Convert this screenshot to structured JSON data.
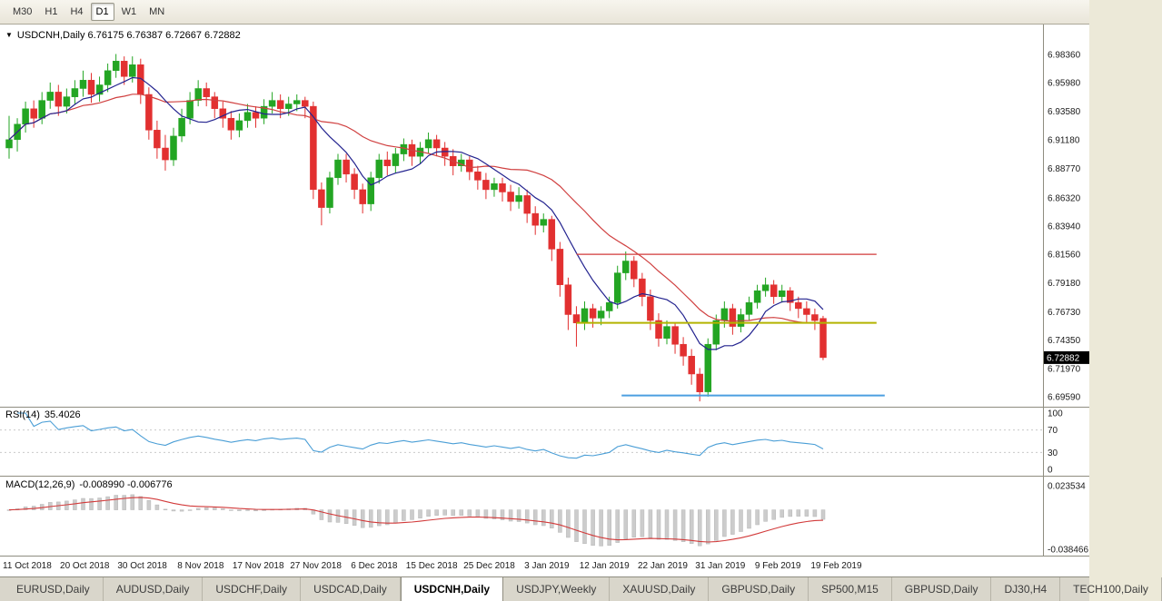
{
  "toolbar": {
    "timeframes": [
      {
        "label": "M30",
        "active": false
      },
      {
        "label": "H1",
        "active": false
      },
      {
        "label": "H4",
        "active": false
      },
      {
        "label": "D1",
        "active": true
      },
      {
        "label": "W1",
        "active": false
      },
      {
        "label": "MN",
        "active": false
      }
    ]
  },
  "chart_data": {
    "type": "candlestick",
    "symbol": "USDCNH,Daily",
    "title_text": "USDCNH,Daily  6.76175 6.76387 6.72667 6.72882",
    "current_price": "6.72882",
    "price_axis_labels": [
      "6.98360",
      "6.95980",
      "6.93580",
      "6.91180",
      "6.88770",
      "6.86320",
      "6.83940",
      "6.81560",
      "6.79180",
      "6.76730",
      "6.74350",
      "6.71970",
      "6.69590"
    ],
    "date_axis_labels": [
      {
        "label": "11 Oct 2018",
        "i": 2.2
      },
      {
        "label": "20 Oct 2018",
        "i": 9.2
      },
      {
        "label": "30 Oct 2018",
        "i": 16.2
      },
      {
        "label": "8 Nov 2018",
        "i": 23.3
      },
      {
        "label": "17 Nov 2018",
        "i": 30.3
      },
      {
        "label": "27 Nov 2018",
        "i": 37.3
      },
      {
        "label": "6 Dec 2018",
        "i": 44.4
      },
      {
        "label": "15 Dec 2018",
        "i": 51.4
      },
      {
        "label": "25 Dec 2018",
        "i": 58.4
      },
      {
        "label": "3 Jan 2019",
        "i": 65.4
      },
      {
        "label": "12 Jan 2019",
        "i": 72.4
      },
      {
        "label": "22 Jan 2019",
        "i": 79.5
      },
      {
        "label": "31 Jan 2019",
        "i": 86.5
      },
      {
        "label": "9 Feb 2019",
        "i": 93.5
      },
      {
        "label": "19 Feb 2019",
        "i": 100.6
      }
    ],
    "candles_ohlc": [
      [
        6.905,
        6.932,
        6.896,
        6.912
      ],
      [
        6.912,
        6.93,
        6.902,
        6.925
      ],
      [
        6.925,
        6.944,
        6.918,
        6.938
      ],
      [
        6.938,
        6.945,
        6.922,
        6.93
      ],
      [
        6.93,
        6.952,
        6.925,
        6.945
      ],
      [
        6.945,
        6.96,
        6.938,
        6.952
      ],
      [
        6.952,
        6.958,
        6.932,
        6.94
      ],
      [
        6.94,
        6.955,
        6.934,
        6.948
      ],
      [
        6.948,
        6.962,
        6.942,
        6.955
      ],
      [
        6.955,
        6.97,
        6.948,
        6.962
      ],
      [
        6.962,
        6.968,
        6.943,
        6.95
      ],
      [
        6.95,
        6.965,
        6.944,
        6.958
      ],
      [
        6.958,
        6.976,
        6.952,
        6.97
      ],
      [
        6.97,
        6.984,
        6.964,
        6.978
      ],
      [
        6.978,
        6.982,
        6.958,
        6.965
      ],
      [
        6.965,
        6.982,
        6.96,
        6.975
      ],
      [
        6.975,
        6.98,
        6.942,
        6.95
      ],
      [
        6.95,
        6.956,
        6.912,
        6.92
      ],
      [
        6.92,
        6.928,
        6.896,
        6.905
      ],
      [
        6.905,
        6.916,
        6.886,
        6.895
      ],
      [
        6.895,
        6.922,
        6.89,
        6.915
      ],
      [
        6.915,
        6.938,
        6.91,
        6.93
      ],
      [
        6.93,
        6.952,
        6.925,
        6.945
      ],
      [
        6.945,
        6.962,
        6.94,
        6.955
      ],
      [
        6.955,
        6.96,
        6.94,
        6.948
      ],
      [
        6.948,
        6.952,
        6.93,
        6.938
      ],
      [
        6.938,
        6.944,
        6.922,
        6.93
      ],
      [
        6.93,
        6.936,
        6.912,
        6.92
      ],
      [
        6.92,
        6.934,
        6.914,
        6.928
      ],
      [
        6.928,
        6.942,
        6.922,
        6.935
      ],
      [
        6.935,
        6.94,
        6.922,
        6.93
      ],
      [
        6.93,
        6.946,
        6.925,
        6.94
      ],
      [
        6.94,
        6.952,
        6.934,
        6.945
      ],
      [
        6.945,
        6.95,
        6.93,
        6.938
      ],
      [
        6.938,
        6.948,
        6.932,
        6.942
      ],
      [
        6.942,
        6.95,
        6.936,
        6.945
      ],
      [
        6.945,
        6.948,
        6.93,
        6.94
      ],
      [
        6.94,
        6.944,
        6.862,
        6.87
      ],
      [
        6.87,
        6.876,
        6.84,
        6.855
      ],
      [
        6.855,
        6.885,
        6.85,
        6.88
      ],
      [
        6.88,
        6.9,
        6.874,
        6.895
      ],
      [
        6.895,
        6.9,
        6.876,
        6.883
      ],
      [
        6.883,
        6.888,
        6.862,
        6.87
      ],
      [
        6.87,
        6.875,
        6.85,
        6.858
      ],
      [
        6.858,
        6.885,
        6.852,
        6.88
      ],
      [
        6.88,
        6.9,
        6.875,
        6.895
      ],
      [
        6.895,
        6.902,
        6.882,
        6.89
      ],
      [
        6.89,
        6.905,
        6.884,
        6.9
      ],
      [
        6.9,
        6.913,
        6.894,
        6.908
      ],
      [
        6.908,
        6.912,
        6.89,
        6.898
      ],
      [
        6.898,
        6.91,
        6.892,
        6.905
      ],
      [
        6.905,
        6.918,
        6.9,
        6.912
      ],
      [
        6.912,
        6.916,
        6.898,
        6.905
      ],
      [
        6.905,
        6.91,
        6.89,
        6.898
      ],
      [
        6.898,
        6.904,
        6.882,
        6.89
      ],
      [
        6.89,
        6.9,
        6.885,
        6.895
      ],
      [
        6.895,
        6.898,
        6.878,
        6.885
      ],
      [
        6.885,
        6.89,
        6.87,
        6.878
      ],
      [
        6.878,
        6.884,
        6.862,
        6.87
      ],
      [
        6.87,
        6.88,
        6.864,
        6.875
      ],
      [
        6.875,
        6.88,
        6.86,
        6.868
      ],
      [
        6.868,
        6.874,
        6.852,
        6.86
      ],
      [
        6.86,
        6.872,
        6.854,
        6.865
      ],
      [
        6.865,
        6.87,
        6.842,
        6.85
      ],
      [
        6.85,
        6.856,
        6.832,
        6.84
      ],
      [
        6.84,
        6.85,
        6.834,
        6.845
      ],
      [
        6.845,
        6.848,
        6.81,
        6.82
      ],
      [
        6.82,
        6.826,
        6.78,
        6.79
      ],
      [
        6.79,
        6.796,
        6.752,
        6.765
      ],
      [
        6.765,
        6.772,
        6.738,
        6.758
      ],
      [
        6.758,
        6.776,
        6.752,
        6.77
      ],
      [
        6.77,
        6.774,
        6.754,
        6.762
      ],
      [
        6.762,
        6.772,
        6.756,
        6.768
      ],
      [
        6.768,
        6.78,
        6.762,
        6.775
      ],
      [
        6.775,
        6.806,
        6.77,
        6.8
      ],
      [
        6.8,
        6.818,
        6.794,
        6.81
      ],
      [
        6.81,
        6.814,
        6.788,
        6.795
      ],
      [
        6.795,
        6.8,
        6.772,
        6.78
      ],
      [
        6.78,
        6.786,
        6.752,
        6.76
      ],
      [
        6.76,
        6.766,
        6.738,
        6.745
      ],
      [
        6.745,
        6.76,
        6.74,
        6.755
      ],
      [
        6.755,
        6.758,
        6.732,
        6.74
      ],
      [
        6.74,
        6.746,
        6.722,
        6.73
      ],
      [
        6.73,
        6.736,
        6.706,
        6.715
      ],
      [
        6.715,
        6.72,
        6.692,
        6.7
      ],
      [
        6.7,
        6.745,
        6.696,
        6.74
      ],
      [
        6.74,
        6.765,
        6.735,
        6.76
      ],
      [
        6.76,
        6.776,
        6.754,
        6.77
      ],
      [
        6.77,
        6.774,
        6.748,
        6.755
      ],
      [
        6.755,
        6.77,
        6.75,
        6.765
      ],
      [
        6.765,
        6.78,
        6.76,
        6.775
      ],
      [
        6.775,
        6.79,
        6.77,
        6.785
      ],
      [
        6.785,
        6.796,
        6.78,
        6.79
      ],
      [
        6.79,
        6.794,
        6.774,
        6.78
      ],
      [
        6.78,
        6.79,
        6.775,
        6.785
      ],
      [
        6.785,
        6.788,
        6.768,
        6.775
      ],
      [
        6.775,
        6.78,
        6.762,
        6.77
      ],
      [
        6.77,
        6.776,
        6.758,
        6.765
      ],
      [
        6.765,
        6.77,
        6.752,
        6.76
      ],
      [
        6.76175,
        6.76387,
        6.72667,
        6.72882
      ]
    ],
    "ma_fast_period": 8,
    "ma_slow_period": 20,
    "hlines": [
      {
        "name": "resistance-hline-red",
        "color": "#D23A3A",
        "price": 6.8156,
        "from": 69,
        "to": 105.5,
        "width": 1.2
      },
      {
        "name": "support-hline-olive",
        "color": "#B3B300",
        "price": 6.758,
        "from": 69,
        "to": 105.5,
        "width": 2
      },
      {
        "name": "support-hline-blue",
        "color": "#4C9FE0",
        "price": 6.697,
        "from": 74.5,
        "to": 106.5,
        "width": 2
      }
    ],
    "colors": {
      "up": "#23A523",
      "down": "#E23030",
      "ma_fast": "#23238F",
      "ma_slow": "#D04040",
      "badge_bg": "#000000",
      "badge_text": "#FFFFFF"
    }
  },
  "rsi": {
    "label": "RSI(14)",
    "value": "35.4026",
    "period": 14,
    "axis_labels": [
      "100",
      "70",
      "30",
      "0"
    ],
    "levels": [
      70,
      30
    ],
    "color": "#4A9ED6"
  },
  "macd": {
    "label": "MACD(12,26,9)",
    "values": "-0.008990 -0.006776",
    "fast": 12,
    "slow": 26,
    "signal_period": 9,
    "axis_top": "0.023534",
    "axis_bottom": "-0.038466",
    "histogram_color": "#CCCCCC",
    "signal_color": "#D23A3A"
  },
  "tabs": [
    {
      "label": "EURUSD,Daily",
      "active": false
    },
    {
      "label": "AUDUSD,Daily",
      "active": false
    },
    {
      "label": "USDCHF,Daily",
      "active": false
    },
    {
      "label": "USDCAD,Daily",
      "active": false
    },
    {
      "label": "USDCNH,Daily",
      "active": true
    },
    {
      "label": "USDJPY,Weekly",
      "active": false
    },
    {
      "label": "XAUUSD,Daily",
      "active": false
    },
    {
      "label": "GBPUSD,Daily",
      "active": false
    },
    {
      "label": "SP500,M15",
      "active": false
    },
    {
      "label": "GBPUSD,Daily",
      "active": false
    },
    {
      "label": "DJ30,H4",
      "active": false
    },
    {
      "label": "TECH100,Daily",
      "active": false
    }
  ]
}
